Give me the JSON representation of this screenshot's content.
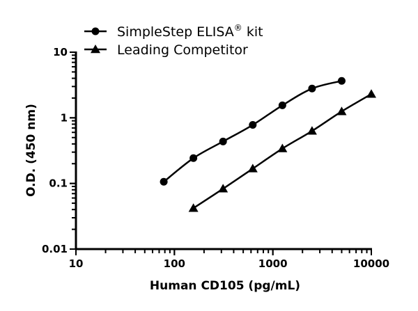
{
  "chart_data": {
    "type": "line",
    "title": "",
    "xlabel": "Human CD105 (pg/mL)",
    "ylabel": "O.D. (450 nm)",
    "xscale": "log",
    "yscale": "log",
    "xlim": [
      10,
      10000
    ],
    "ylim": [
      0.01,
      10
    ],
    "xticks": [
      "10",
      "100",
      "1000",
      "10000"
    ],
    "yticks": [
      "0.01",
      "0.1",
      "1",
      "10"
    ],
    "grid": false,
    "legend_position": "top-left",
    "series": [
      {
        "name": "SimpleStep ELISA® kit",
        "marker": "circle",
        "color": "#000000",
        "x": [
          78,
          156,
          312,
          625,
          1250,
          2500,
          5000
        ],
        "y": [
          0.106,
          0.243,
          0.436,
          0.78,
          1.55,
          2.79,
          3.65
        ]
      },
      {
        "name": "Leading Competitor",
        "marker": "triangle",
        "color": "#000000",
        "x": [
          156,
          312,
          625,
          1250,
          2500,
          5000,
          10000
        ],
        "y": [
          0.042,
          0.083,
          0.168,
          0.34,
          0.63,
          1.25,
          2.3
        ]
      }
    ]
  }
}
